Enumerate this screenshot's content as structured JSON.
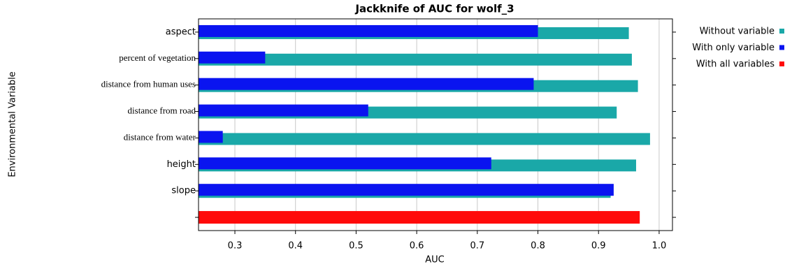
{
  "chart_data": {
    "type": "bar",
    "orientation": "horizontal",
    "title": "Jackknife of AUC for wolf_3",
    "x_label": "AUC",
    "y_label": "Environmental Variable",
    "categories": [
      "aspect",
      "percent of vegetation",
      "distance from human uses",
      "distance from road",
      "distance from water",
      "height",
      "slope",
      null
    ],
    "series": [
      {
        "name": "Without variable",
        "color": "#1aa8a8",
        "values": [
          0.95,
          0.955,
          0.965,
          0.93,
          0.985,
          0.962,
          0.92,
          null
        ]
      },
      {
        "name": "With only variable",
        "color": "#0a14f0",
        "values": [
          0.8,
          0.35,
          0.793,
          0.52,
          0.28,
          0.723,
          0.925,
          null
        ]
      },
      {
        "name": "With all variables",
        "color": "#ff0a0a",
        "values": [
          null,
          null,
          null,
          null,
          null,
          null,
          null,
          0.968
        ]
      }
    ],
    "xlim": [
      0.24,
      1.022
    ],
    "xticks": [
      0.3,
      0.4,
      0.5,
      0.6,
      0.7,
      0.8,
      0.9,
      {
        "value": 1,
        "label": "1.0"
      }
    ],
    "grid": true
  }
}
